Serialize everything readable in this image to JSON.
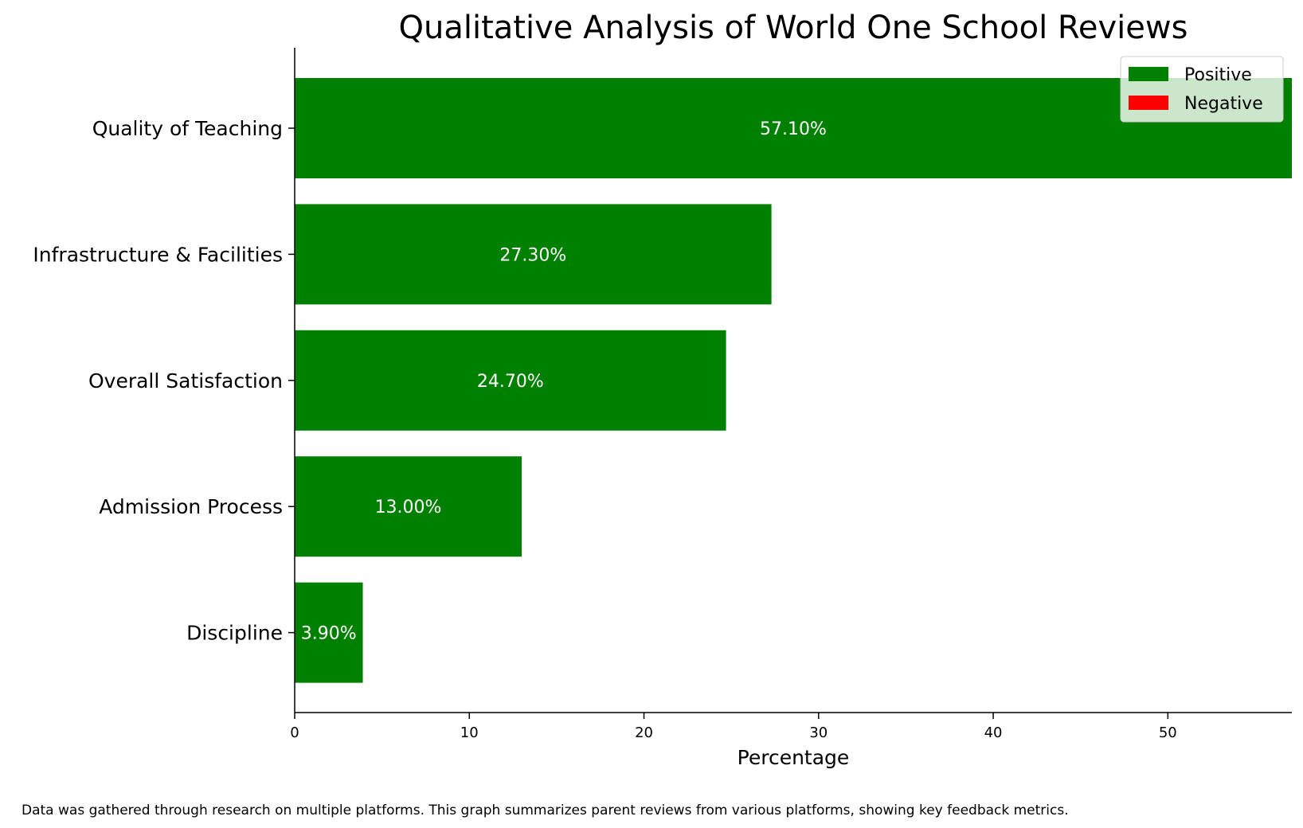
{
  "chart_data": {
    "type": "bar",
    "orientation": "horizontal",
    "title": "Qualitative Analysis of World One School Reviews",
    "xlabel": "Percentage",
    "ylabel": "",
    "xlim": [
      0,
      57.1
    ],
    "xticks": [
      0,
      10,
      20,
      30,
      40,
      50
    ],
    "grid": false,
    "legend_position": "top-right",
    "categories": [
      "Quality of Teaching",
      "Infrastructure & Facilities",
      "Overall Satisfaction",
      "Admission Process",
      "Discipline"
    ],
    "series": [
      {
        "name": "Positive",
        "color": "#008000",
        "values": [
          57.1,
          27.3,
          24.7,
          13.0,
          3.9
        ],
        "labels": [
          "57.10%",
          "27.30%",
          "24.70%",
          "13.00%",
          "3.90%"
        ]
      },
      {
        "name": "Negative",
        "color": "#ff0000",
        "values": [
          0,
          0,
          0,
          0,
          0
        ]
      }
    ],
    "footnote": "Data was gathered through research on multiple platforms. This graph summarizes parent reviews from various platforms, showing key feedback metrics."
  }
}
